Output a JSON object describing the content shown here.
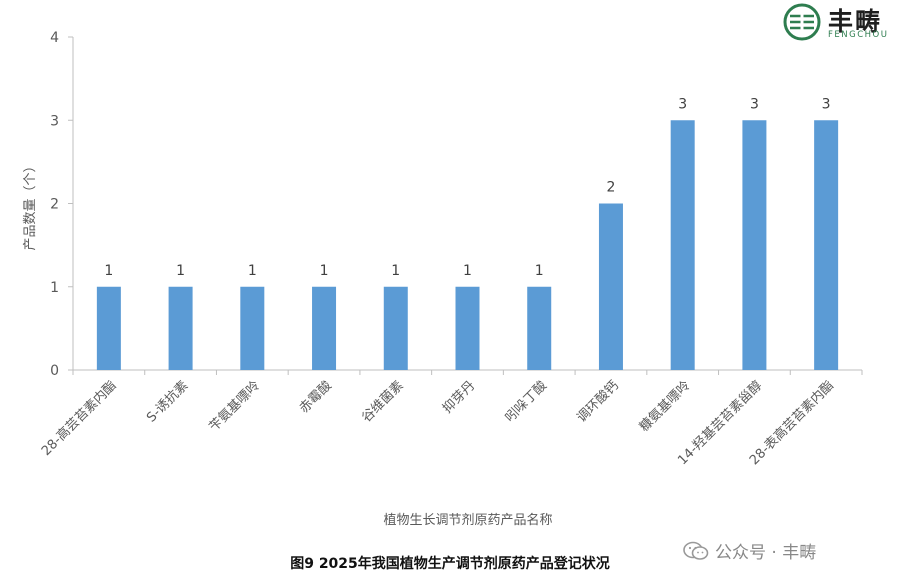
{
  "logo": {
    "name": "丰畴",
    "subtitle": "FENGCHOU"
  },
  "chart_data": {
    "type": "bar",
    "categories": [
      "28-高芸苔素内酯",
      "S-诱抗素",
      "苄氨基嘌呤",
      "赤霉酸",
      "谷维菌素",
      "抑芽丹",
      "吲哚丁酸",
      "调环酸钙",
      "糠氨基嘌呤",
      "14-羟基芸苔素甾醇",
      "28-表高芸苔素内酯"
    ],
    "values": [
      1,
      1,
      1,
      1,
      1,
      1,
      1,
      2,
      3,
      3,
      3
    ],
    "data_labels": [
      "1",
      "1",
      "1",
      "1",
      "1",
      "1",
      "1",
      "2",
      "3",
      "3",
      "3"
    ],
    "xlabel": "植物生长调节剂原药产品名称",
    "ylabel": "产品数量（个）",
    "ylim": [
      0,
      4
    ],
    "yticks": [
      "0",
      "1",
      "2",
      "3",
      "4"
    ],
    "grid": false,
    "bar_color": "#5b9bd5"
  },
  "caption": "图9 2025年我国植物生产调节剂原药产品登记状况",
  "watermark": "公众号 · 丰畴"
}
